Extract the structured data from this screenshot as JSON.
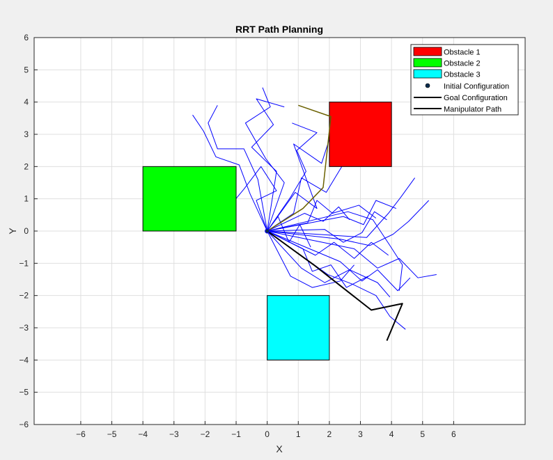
{
  "chart_data": {
    "type": "line",
    "title": "RRT Path Planning",
    "xlabel": "X",
    "ylabel": "Y",
    "xlim": [
      -7.5,
      8.3
    ],
    "ylim": [
      -6,
      6
    ],
    "xticks": [
      -6,
      -5,
      -4,
      -3,
      -2,
      -1,
      0,
      1,
      2,
      3,
      4,
      5,
      6
    ],
    "yticks": [
      -6,
      -5,
      -4,
      -3,
      -2,
      -1,
      0,
      1,
      2,
      3,
      4,
      5,
      6
    ],
    "grid": true,
    "legend_position": "top-right",
    "obstacles": [
      {
        "name": "Obstacle 1",
        "x": [
          2,
          4
        ],
        "y": [
          2,
          4
        ],
        "color": "#ff0000"
      },
      {
        "name": "Obstacle 2",
        "x": [
          -4,
          -1
        ],
        "y": [
          0,
          2
        ],
        "color": "#00ff00"
      },
      {
        "name": "Obstacle 3",
        "x": [
          0,
          2
        ],
        "y": [
          -4,
          -2
        ],
        "color": "#00ffff"
      }
    ],
    "initial_configuration": {
      "name": "Initial Configuration",
      "x": 0,
      "y": 0,
      "color": "#0b2d4e"
    },
    "goal_configuration": {
      "name": "Goal Configuration",
      "color": "#6b6100",
      "x": [
        0,
        1.15,
        1.8,
        2.05,
        1.0
      ],
      "y": [
        0,
        0.7,
        1.35,
        3.55,
        3.9
      ]
    },
    "manipulator_path": {
      "name": "Manipulator Path",
      "color": "#000000",
      "x": [
        0,
        1.5,
        3.35,
        4.35,
        3.85
      ],
      "y": [
        0,
        -1.05,
        -2.45,
        -2.25,
        -3.4
      ]
    },
    "tree": {
      "color": "#0000ff",
      "branches": [
        [
          [
            0,
            0
          ],
          [
            0.9,
            1.2
          ],
          [
            1.6,
            0.7
          ],
          [
            0.85,
            2.7
          ],
          [
            1.75,
            2.1
          ],
          [
            2.1,
            3.15
          ]
        ],
        [
          [
            0,
            0
          ],
          [
            0.3,
            1.85
          ],
          [
            -0.5,
            2.6
          ],
          [
            0.2,
            3.3
          ],
          [
            -0.35,
            4.1
          ],
          [
            0.55,
            3.85
          ]
        ],
        [
          [
            0,
            0
          ],
          [
            -0.3,
            1.6
          ],
          [
            -0.75,
            2.55
          ],
          [
            -1.6,
            2.55
          ],
          [
            -1.9,
            3.35
          ],
          [
            -1.6,
            3.9
          ]
        ],
        [
          [
            0,
            0
          ],
          [
            -0.55,
            1.15
          ],
          [
            -0.9,
            2.05
          ],
          [
            -1.65,
            2.3
          ],
          [
            -2.05,
            3.1
          ],
          [
            -2.4,
            3.6
          ]
        ],
        [
          [
            0,
            0
          ],
          [
            0.55,
            1.5
          ],
          [
            -0.05,
            2.25
          ],
          [
            -0.7,
            3.35
          ],
          [
            0.1,
            3.85
          ],
          [
            -0.15,
            4.45
          ]
        ],
        [
          [
            0,
            0
          ],
          [
            0.75,
            1.05
          ],
          [
            1.25,
            1.85
          ],
          [
            0.95,
            2.5
          ],
          [
            1.6,
            3.05
          ],
          [
            0.8,
            3.35
          ]
        ],
        [
          [
            0,
            0
          ],
          [
            -0.35,
            0.95
          ],
          [
            0.3,
            1.25
          ],
          [
            -0.2,
            2.0
          ],
          [
            -0.75,
            1.3
          ],
          [
            -1.05,
            0.95
          ]
        ],
        [
          [
            0,
            0
          ],
          [
            1.3,
            0.25
          ],
          [
            1.6,
            0.95
          ],
          [
            2.1,
            0.55
          ],
          [
            2.95,
            0.8
          ],
          [
            3.5,
            0.4
          ]
        ],
        [
          [
            0,
            0
          ],
          [
            0.85,
            0.55
          ],
          [
            1.1,
            1.65
          ],
          [
            1.9,
            1.2
          ],
          [
            2.4,
            2.0
          ]
        ],
        [
          [
            0,
            0
          ],
          [
            2.45,
            0.45
          ],
          [
            3.1,
            0.2
          ],
          [
            3.5,
            0.95
          ],
          [
            4.15,
            0.7
          ]
        ],
        [
          [
            0,
            0
          ],
          [
            2.35,
            -0.25
          ],
          [
            3.3,
            -0.45
          ],
          [
            4.05,
            -0.1
          ],
          [
            4.55,
            0.3
          ],
          [
            5.2,
            0.95
          ]
        ],
        [
          [
            0,
            0
          ],
          [
            3.2,
            -0.2
          ],
          [
            3.9,
            0.55
          ],
          [
            4.3,
            1.05
          ],
          [
            4.75,
            1.65
          ]
        ],
        [
          [
            0,
            0
          ],
          [
            2.8,
            -0.55
          ],
          [
            3.55,
            -1.15
          ],
          [
            4.25,
            -0.85
          ],
          [
            4.85,
            -1.45
          ],
          [
            5.45,
            -1.35
          ]
        ],
        [
          [
            0,
            0
          ],
          [
            2.35,
            -0.95
          ],
          [
            3.05,
            -1.55
          ],
          [
            3.55,
            -1.2
          ],
          [
            4.2,
            -1.85
          ],
          [
            4.6,
            -1.45
          ]
        ],
        [
          [
            0,
            0
          ],
          [
            1.95,
            -1.35
          ],
          [
            2.75,
            -1.65
          ],
          [
            3.5,
            -2.0
          ],
          [
            3.95,
            -2.65
          ],
          [
            4.45,
            -3.05
          ]
        ],
        [
          [
            0,
            0
          ],
          [
            1.1,
            -1.15
          ],
          [
            1.85,
            -1.6
          ],
          [
            2.65,
            -1.2
          ],
          [
            3.55,
            -1.6
          ],
          [
            3.95,
            -2.05
          ]
        ],
        [
          [
            0,
            0
          ],
          [
            0.75,
            -1.4
          ],
          [
            1.45,
            -1.75
          ],
          [
            2.35,
            -1.55
          ],
          [
            2.8,
            -1.05
          ]
        ],
        [
          [
            0,
            0
          ],
          [
            1.55,
            -0.75
          ],
          [
            2.15,
            -0.35
          ],
          [
            2.8,
            -0.85
          ],
          [
            3.35,
            -0.35
          ],
          [
            3.9,
            -0.75
          ]
        ],
        [
          [
            0,
            0
          ],
          [
            1.85,
            0.05
          ],
          [
            2.45,
            -0.35
          ],
          [
            3.05,
            -0.05
          ],
          [
            3.45,
            0.6
          ],
          [
            3.85,
            0.35
          ]
        ],
        [
          [
            0,
            0
          ],
          [
            1.15,
            -0.55
          ],
          [
            1.45,
            -1.25
          ],
          [
            2.05,
            -1.05
          ],
          [
            2.55,
            -1.75
          ],
          [
            3.25,
            -1.4
          ]
        ],
        [
          [
            0,
            0
          ],
          [
            2.6,
            0.6
          ],
          [
            3.4,
            0.35
          ],
          [
            3.95,
            -0.45
          ],
          [
            4.35,
            -1.05
          ],
          [
            4.25,
            -1.85
          ]
        ],
        [
          [
            0,
            0
          ],
          [
            0.35,
            0.45
          ],
          [
            0.7,
            -0.35
          ],
          [
            1.05,
            0.2
          ],
          [
            1.4,
            -0.5
          ]
        ],
        [
          [
            0,
            0
          ],
          [
            1.2,
            0.55
          ],
          [
            1.8,
            0.3
          ],
          [
            2.3,
            0.75
          ],
          [
            2.65,
            0.35
          ]
        ]
      ]
    }
  }
}
